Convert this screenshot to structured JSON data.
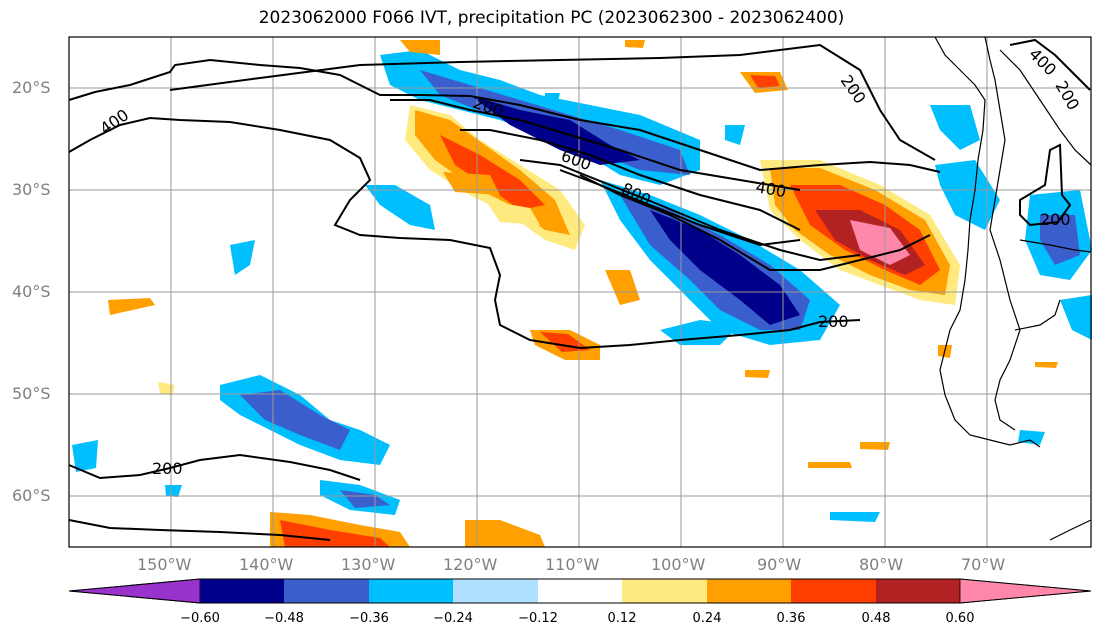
{
  "title": "2023062000 F066 IVT, precipitation PC (2023062300 - 2023062400)",
  "lat_labels": [
    "20°S",
    "30°S",
    "40°S",
    "50°S",
    "60°S"
  ],
  "lon_labels": [
    "150°W",
    "140°W",
    "130°W",
    "120°W",
    "110°W",
    "100°W",
    "90°W",
    "80°W",
    "70°W"
  ],
  "contour_labels": [
    "200",
    "400",
    "600",
    "800",
    "200",
    "400",
    "200",
    "200",
    "200",
    "400",
    "200"
  ],
  "colorbar": {
    "ticks": [
      "−0.60",
      "−0.48",
      "−0.36",
      "−0.24",
      "−0.12",
      "0.12",
      "0.24",
      "0.36",
      "0.48",
      "0.60"
    ],
    "colors": [
      "#9933cc",
      "#00008b",
      "#3a5fcd",
      "#00bfff",
      "#b0e0ff",
      "#ffffff",
      "#ffea80",
      "#ff9f00",
      "#ff3f00",
      "#b22222",
      "#ff88aa"
    ]
  }
}
